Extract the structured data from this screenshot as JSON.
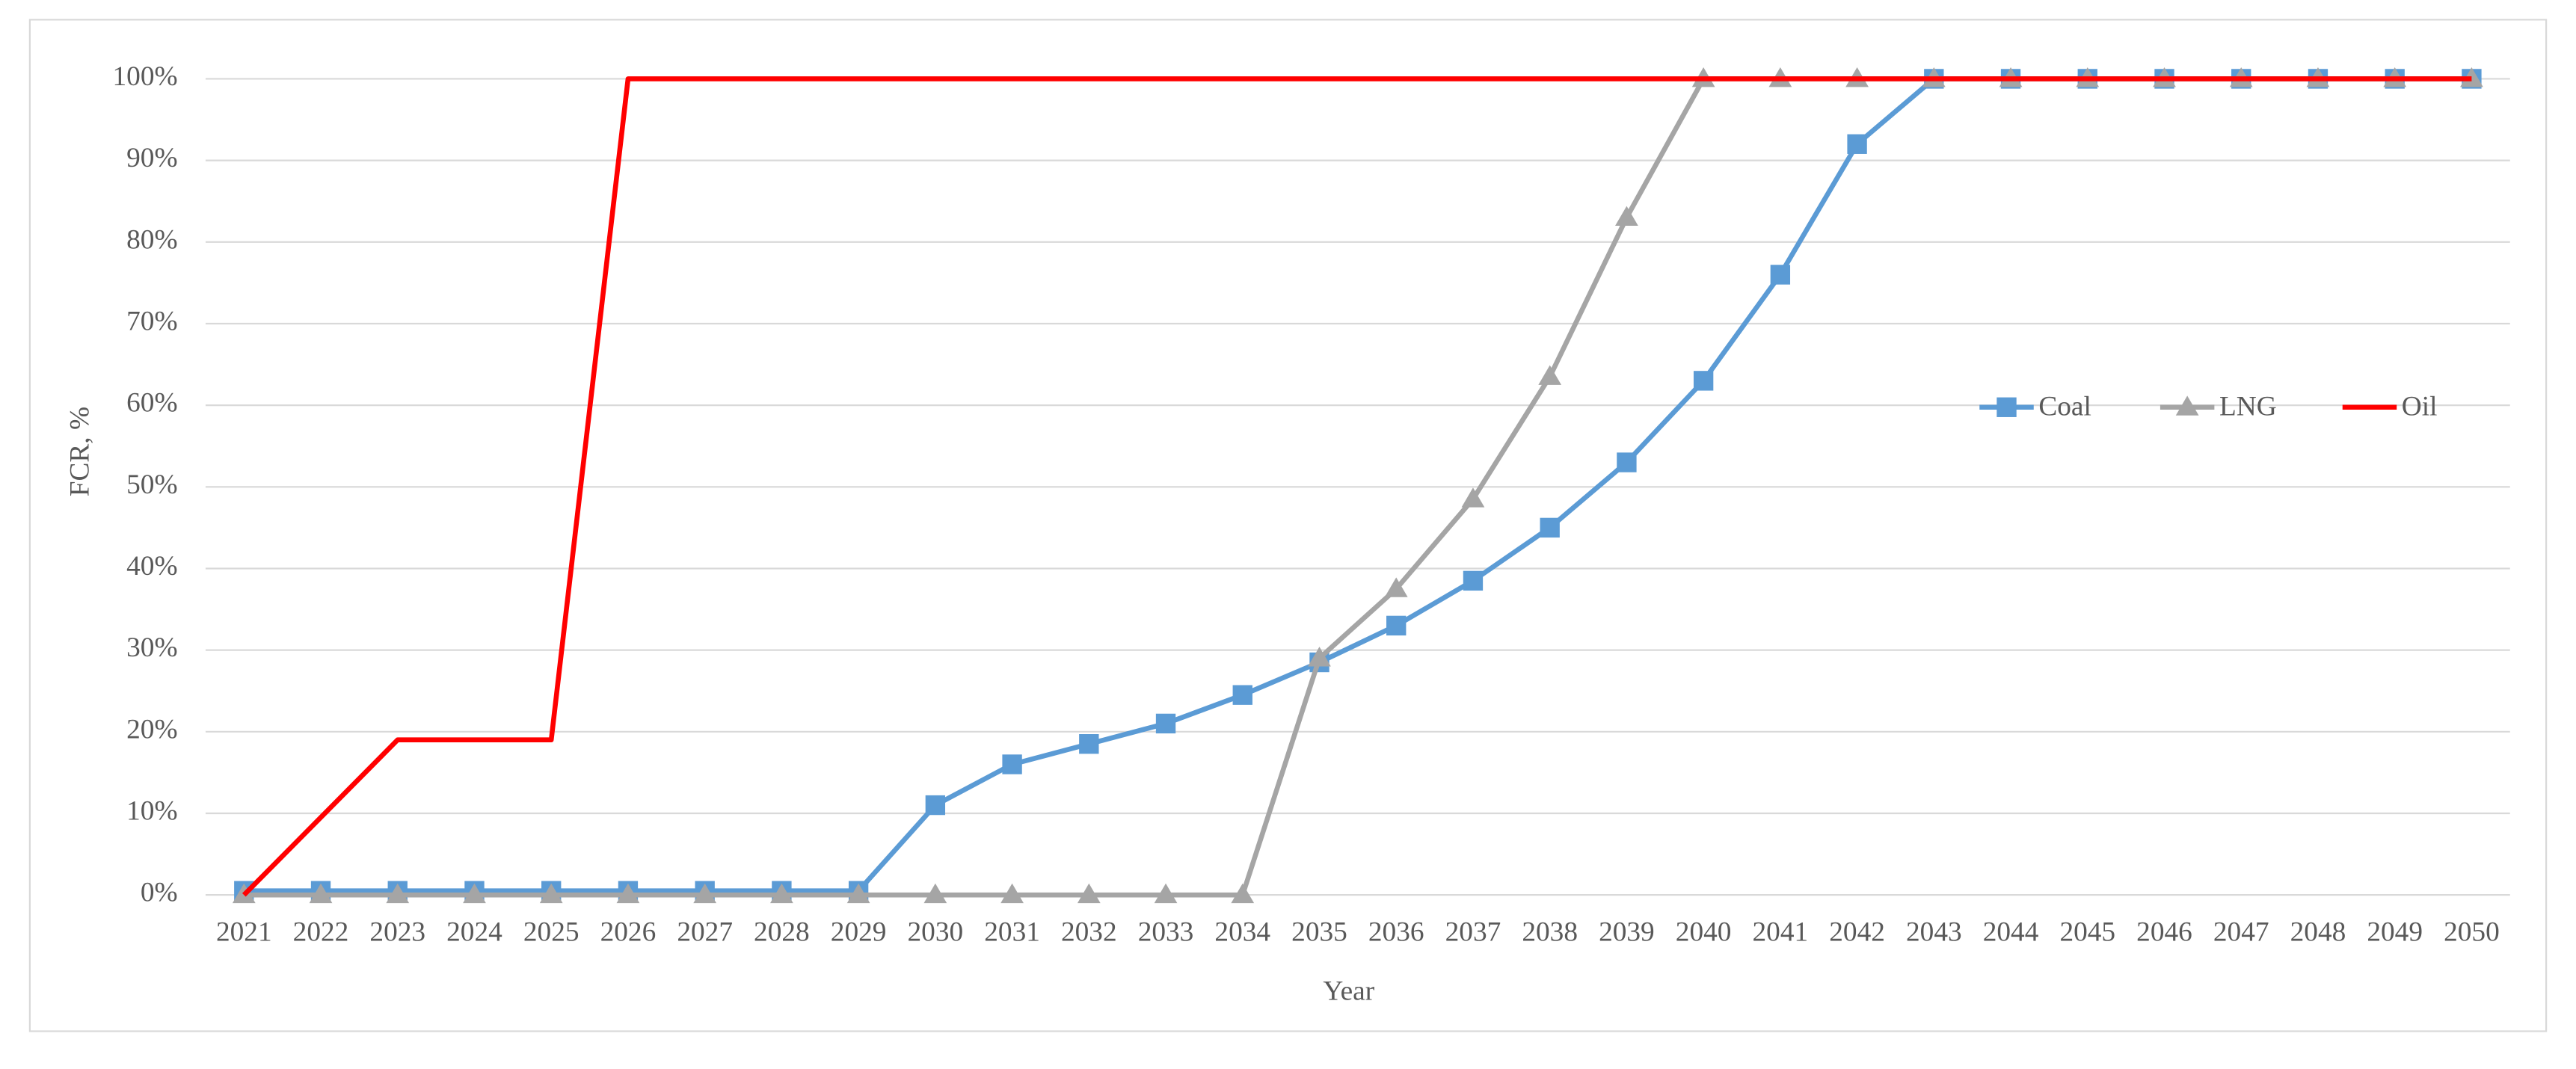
{
  "chart_data": {
    "type": "line",
    "x_label": "Year",
    "y_label": "FCR, %",
    "categories": [
      "2021",
      "2022",
      "2023",
      "2024",
      "2025",
      "2026",
      "2027",
      "2028",
      "2029",
      "2030",
      "2031",
      "2032",
      "2033",
      "2034",
      "2035",
      "2036",
      "2037",
      "2038",
      "2039",
      "2040",
      "2041",
      "2042",
      "2043",
      "2044",
      "2045",
      "2046",
      "2047",
      "2048",
      "2049",
      "2050"
    ],
    "series": [
      {
        "name": "Coal",
        "color": "#5b9bd5",
        "marker": "square",
        "values": [
          0.5,
          0.5,
          0.5,
          0.5,
          0.5,
          0.5,
          0.5,
          0.5,
          0.5,
          11,
          16,
          18.5,
          21,
          24.5,
          28.5,
          33,
          38.5,
          45,
          53,
          63,
          76,
          92,
          100,
          100,
          100,
          100,
          100,
          100,
          100,
          100
        ]
      },
      {
        "name": "LNG",
        "color": "#a5a5a5",
        "marker": "triangle",
        "values": [
          0,
          0,
          0,
          0,
          0,
          0,
          0,
          0,
          0,
          0,
          0,
          0,
          0,
          0,
          29,
          37.5,
          48.5,
          63.5,
          83,
          100,
          100,
          100,
          100,
          100,
          100,
          100,
          100,
          100,
          100,
          100
        ]
      },
      {
        "name": "Oil",
        "color": "#ff0000",
        "marker": "none",
        "values": [
          0,
          9.5,
          19,
          19,
          19,
          100,
          100,
          100,
          100,
          100,
          100,
          100,
          100,
          100,
          100,
          100,
          100,
          100,
          100,
          100,
          100,
          100,
          100,
          100,
          100,
          100,
          100,
          100,
          100,
          100
        ]
      }
    ],
    "ylim": [
      0,
      100
    ],
    "yticks": [
      {
        "value": 0,
        "label": "0%"
      },
      {
        "value": 10,
        "label": "10%"
      },
      {
        "value": 20,
        "label": "20%"
      },
      {
        "value": 30,
        "label": "30%"
      },
      {
        "value": 40,
        "label": "40%"
      },
      {
        "value": 50,
        "label": "50%"
      },
      {
        "value": 60,
        "label": "60%"
      },
      {
        "value": 70,
        "label": "70%"
      },
      {
        "value": 80,
        "label": "80%"
      },
      {
        "value": 90,
        "label": "90%"
      },
      {
        "value": 100,
        "label": "100%"
      }
    ],
    "grid": true,
    "legend": "right"
  }
}
